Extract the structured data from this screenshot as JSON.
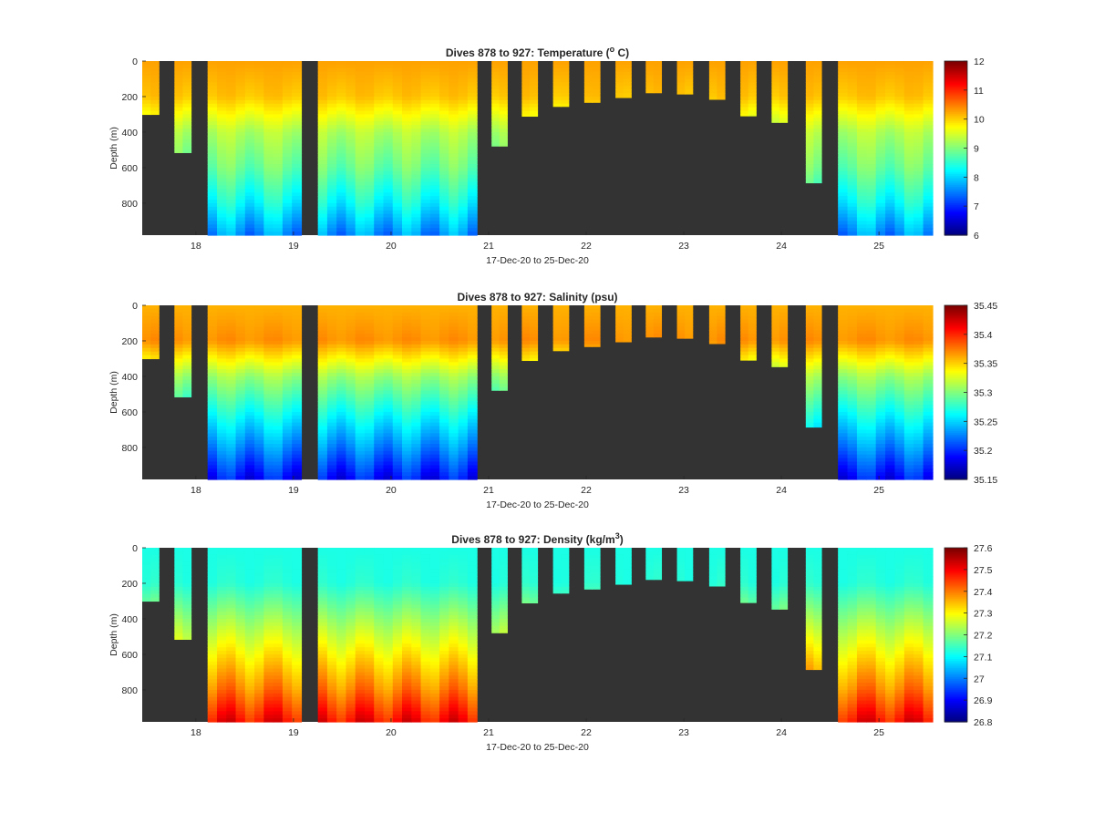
{
  "figure": {
    "background": "#ffffff",
    "plot_background": "#333333",
    "colormap": "jet"
  },
  "chart_data": [
    {
      "type": "heatmap",
      "title_main": "Dives 878 to 927: Temperature (",
      "title_super": "o",
      "title_tail": " C)",
      "xlabel": "17-Dec-20 to 25-Dec-20",
      "ylabel": "Depth (m)",
      "xlim": [
        17.45,
        25.55
      ],
      "ylim": [
        0,
        980
      ],
      "y_reversed": true,
      "xticks": [
        "18",
        "19",
        "20",
        "21",
        "22",
        "23",
        "24",
        "25"
      ],
      "yticks": [
        "0",
        "200",
        "400",
        "600",
        "800"
      ],
      "colorbar_range": [
        6,
        12
      ],
      "colorbar_ticks": [
        "6",
        "7",
        "8",
        "9",
        "10",
        "11",
        "12"
      ],
      "profile_value": {
        "surface": 10.3,
        "thermocline_top": 10.1,
        "thermocline_bottom": 9.3,
        "at_600": 8.9,
        "at_800": 8.3,
        "bottom": 7.6
      },
      "segments": [
        {
          "start": 17.45,
          "end": 17.62,
          "max_depth": 300
        },
        {
          "start": 17.78,
          "end": 17.95,
          "max_depth": 515
        },
        {
          "start": 18.12,
          "end": 19.08,
          "max_depth": 980
        },
        {
          "start": 19.25,
          "end": 20.88,
          "max_depth": 980
        },
        {
          "start": 21.03,
          "end": 21.19,
          "max_depth": 478
        },
        {
          "start": 21.34,
          "end": 21.5,
          "max_depth": 310
        },
        {
          "start": 21.66,
          "end": 21.82,
          "max_depth": 255
        },
        {
          "start": 21.98,
          "end": 22.14,
          "max_depth": 232
        },
        {
          "start": 22.3,
          "end": 22.46,
          "max_depth": 205
        },
        {
          "start": 22.61,
          "end": 22.77,
          "max_depth": 178
        },
        {
          "start": 22.93,
          "end": 23.09,
          "max_depth": 185
        },
        {
          "start": 23.26,
          "end": 23.42,
          "max_depth": 215
        },
        {
          "start": 23.58,
          "end": 23.74,
          "max_depth": 308
        },
        {
          "start": 23.9,
          "end": 24.06,
          "max_depth": 345
        },
        {
          "start": 24.25,
          "end": 24.41,
          "max_depth": 685
        },
        {
          "start": 24.58,
          "end": 25.55,
          "max_depth": 980
        }
      ]
    },
    {
      "type": "heatmap",
      "title_main": "Dives 878 to 927: Salinity (psu)",
      "title_super": "",
      "title_tail": "",
      "xlabel": "17-Dec-20 to 25-Dec-20",
      "ylabel": "Depth (m)",
      "xlim": [
        17.45,
        25.55
      ],
      "ylim": [
        0,
        980
      ],
      "y_reversed": true,
      "xticks": [
        "18",
        "19",
        "20",
        "21",
        "22",
        "23",
        "24",
        "25"
      ],
      "yticks": [
        "0",
        "200",
        "400",
        "600",
        "800"
      ],
      "colorbar_range": [
        35.15,
        35.45
      ],
      "colorbar_ticks": [
        "35.15",
        "35.2",
        "35.25",
        "35.3",
        "35.35",
        "35.4",
        "35.45"
      ],
      "profile_value": {
        "surface": 35.36,
        "thermocline_top": 35.37,
        "thermocline_bottom": 35.31,
        "at_600": 35.27,
        "at_800": 35.23,
        "bottom": 35.19
      },
      "segments": [
        {
          "start": 17.45,
          "end": 17.62,
          "max_depth": 300
        },
        {
          "start": 17.78,
          "end": 17.95,
          "max_depth": 515
        },
        {
          "start": 18.12,
          "end": 19.08,
          "max_depth": 980
        },
        {
          "start": 19.25,
          "end": 20.88,
          "max_depth": 980
        },
        {
          "start": 21.03,
          "end": 21.19,
          "max_depth": 478
        },
        {
          "start": 21.34,
          "end": 21.5,
          "max_depth": 310
        },
        {
          "start": 21.66,
          "end": 21.82,
          "max_depth": 255
        },
        {
          "start": 21.98,
          "end": 22.14,
          "max_depth": 232
        },
        {
          "start": 22.3,
          "end": 22.46,
          "max_depth": 205
        },
        {
          "start": 22.61,
          "end": 22.77,
          "max_depth": 178
        },
        {
          "start": 22.93,
          "end": 23.09,
          "max_depth": 185
        },
        {
          "start": 23.26,
          "end": 23.42,
          "max_depth": 215
        },
        {
          "start": 23.58,
          "end": 23.74,
          "max_depth": 308
        },
        {
          "start": 23.9,
          "end": 24.06,
          "max_depth": 345
        },
        {
          "start": 24.25,
          "end": 24.41,
          "max_depth": 685
        },
        {
          "start": 24.58,
          "end": 25.55,
          "max_depth": 980
        }
      ]
    },
    {
      "type": "heatmap",
      "title_main": "Dives 878 to 927: Density (kg/m",
      "title_super": "3",
      "title_tail": ")",
      "xlabel": "17-Dec-20 to 25-Dec-20",
      "ylabel": "Depth (m)",
      "xlim": [
        17.45,
        25.55
      ],
      "ylim": [
        0,
        980
      ],
      "y_reversed": true,
      "xticks": [
        "18",
        "19",
        "20",
        "21",
        "22",
        "23",
        "24",
        "25"
      ],
      "yticks": [
        "0",
        "200",
        "400",
        "600",
        "800"
      ],
      "colorbar_range": [
        26.8,
        27.6
      ],
      "colorbar_ticks": [
        "26.8",
        "26.9",
        "27",
        "27.1",
        "27.2",
        "27.3",
        "27.4",
        "27.5",
        "27.6"
      ],
      "profile_value": {
        "surface": 27.12,
        "thermocline_top": 27.13,
        "thermocline_bottom": 27.22,
        "at_600": 27.31,
        "at_800": 27.4,
        "bottom": 27.5
      },
      "segments": [
        {
          "start": 17.45,
          "end": 17.62,
          "max_depth": 300
        },
        {
          "start": 17.78,
          "end": 17.95,
          "max_depth": 515
        },
        {
          "start": 18.12,
          "end": 19.08,
          "max_depth": 980
        },
        {
          "start": 19.25,
          "end": 20.88,
          "max_depth": 980
        },
        {
          "start": 21.03,
          "end": 21.19,
          "max_depth": 478
        },
        {
          "start": 21.34,
          "end": 21.5,
          "max_depth": 310
        },
        {
          "start": 21.66,
          "end": 21.82,
          "max_depth": 255
        },
        {
          "start": 21.98,
          "end": 22.14,
          "max_depth": 232
        },
        {
          "start": 22.3,
          "end": 22.46,
          "max_depth": 205
        },
        {
          "start": 22.61,
          "end": 22.77,
          "max_depth": 178
        },
        {
          "start": 22.93,
          "end": 23.09,
          "max_depth": 185
        },
        {
          "start": 23.26,
          "end": 23.42,
          "max_depth": 215
        },
        {
          "start": 23.58,
          "end": 23.74,
          "max_depth": 308
        },
        {
          "start": 23.9,
          "end": 24.06,
          "max_depth": 345
        },
        {
          "start": 24.25,
          "end": 24.41,
          "max_depth": 685
        },
        {
          "start": 24.58,
          "end": 25.55,
          "max_depth": 980
        }
      ]
    }
  ]
}
